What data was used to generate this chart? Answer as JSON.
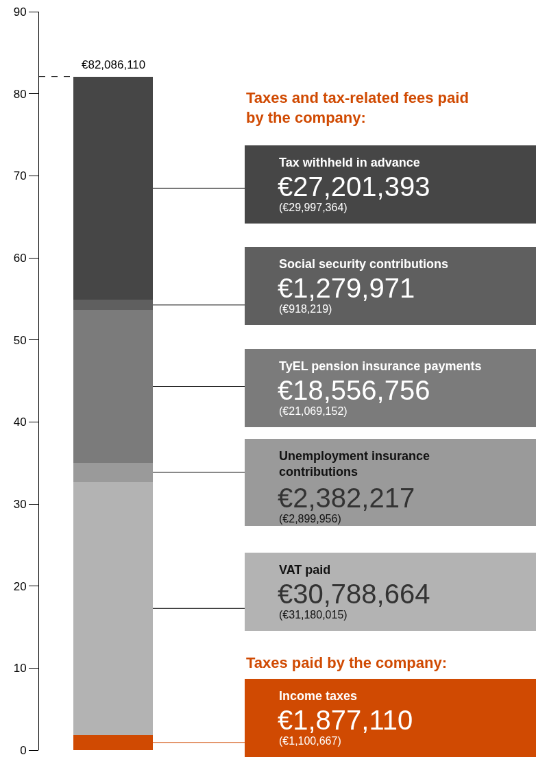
{
  "chart_data": {
    "type": "bar",
    "stacked": true,
    "categories": [
      null
    ],
    "ylim": [
      0,
      90
    ],
    "yticks": [
      0,
      10,
      20,
      30,
      40,
      50,
      60,
      70,
      80,
      90
    ],
    "tick_labels": "y",
    "series": [
      {
        "name": "Income taxes",
        "color": "#d04a02",
        "values": [
          1.88
        ]
      },
      {
        "name": "VAT paid",
        "color": "#b3b3b3",
        "values": [
          30.79
        ]
      },
      {
        "name": "Unemployment insurance contributions",
        "color": "#9a9a9a",
        "values": [
          2.38
        ]
      },
      {
        "name": "TyEL pension insurance payments",
        "color": "#7b7b7b",
        "values": [
          18.56
        ]
      },
      {
        "name": "Social security contributions",
        "color": "#5f5f5f",
        "values": [
          1.28
        ]
      },
      {
        "name": "Tax withheld in advance",
        "color": "#464646",
        "values": [
          27.2
        ]
      }
    ],
    "ref_lines": [
      {
        "axis": "y",
        "value": 82.09,
        "label": "€82,086,110",
        "line_style": "dashed",
        "color": "#000000"
      }
    ],
    "annotations": [
      "Taxes and tax-related fees paid by the company:",
      "Taxes paid by the company:",
      "€1,877,110",
      "(€1,100,667)",
      "€30,788,664",
      "(€31,180,015)",
      "€2,382,217",
      "(€2,899,956)",
      "€18,556,756",
      "(€21,069,152)",
      "€1,279,971",
      "(€918,219)",
      "€27,201,393",
      "(€29,997,364)"
    ]
  }
}
